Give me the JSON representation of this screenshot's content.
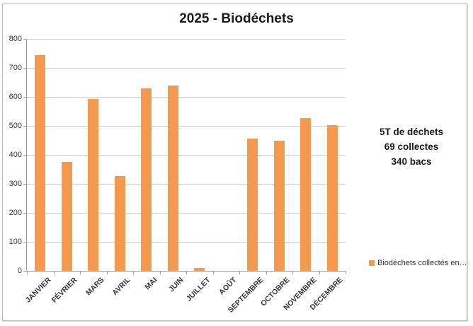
{
  "chart": {
    "title": "2025 - Biodéchets",
    "stats": {
      "line1": "5T de déchets",
      "line2": "69 collectes",
      "line3": "340 bacs"
    },
    "legend": {
      "label": "Biodéchets collectés en…"
    },
    "colors": {
      "bar": "#f4994d",
      "gridline": "#cfcdcd",
      "axis": "#9e9e9e",
      "frame_border": "#bdbdbd",
      "text": "#363636"
    }
  },
  "chart_data": {
    "type": "bar",
    "title": "2025 - Biodéchets",
    "series_name": "Biodéchets collectés en…",
    "categories": [
      "JANVIER",
      "FÉVRIER",
      "MARS",
      "AVRIL",
      "MAI",
      "JUIN",
      "JUILLET",
      "AOÛT",
      "SEPTEMBRE",
      "OCTOBRE",
      "NOVEMBRE",
      "DÉCEMBRE"
    ],
    "values": [
      745,
      375,
      593,
      327,
      630,
      638,
      10,
      0,
      456,
      448,
      528,
      503
    ],
    "xlabel": "",
    "ylabel": "",
    "ylim": [
      0,
      800
    ],
    "ytick_step": 100,
    "yticks": [
      0,
      100,
      200,
      300,
      400,
      500,
      600,
      700,
      800
    ],
    "grid": true,
    "bar_color": "#f4994d",
    "legend_position": "bottom-right",
    "annotations": [
      "5T de déchets",
      "69 collectes",
      "340 bacs"
    ]
  }
}
